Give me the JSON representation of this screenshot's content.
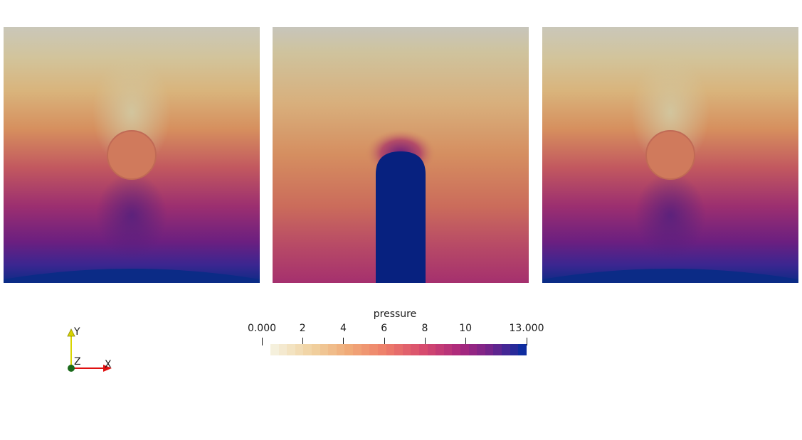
{
  "viewports": [
    {
      "name": "left",
      "feature": "circle"
    },
    {
      "name": "middle",
      "feature": "pillar"
    },
    {
      "name": "right",
      "feature": "circle"
    }
  ],
  "colors": {
    "low": "#f2ecd5",
    "high": "#0b2b86",
    "pillar": "#07217f",
    "top_band": "#c9c9c0",
    "axis_y": "#d8d400",
    "axis_x": "#e01010",
    "axis_z": "#1b6a1b"
  },
  "scalar_bar": {
    "title": "pressure",
    "range": [
      0,
      13
    ],
    "ticks": [
      {
        "value": 0,
        "label": "0.000"
      },
      {
        "value": 2,
        "label": "2"
      },
      {
        "value": 4,
        "label": "4"
      },
      {
        "value": 6,
        "label": "6"
      },
      {
        "value": 8,
        "label": "8"
      },
      {
        "value": 10,
        "label": "10"
      },
      {
        "value": 13,
        "label": "13.000"
      }
    ],
    "segments": 31
  },
  "axes": {
    "x_label": "X",
    "y_label": "Y",
    "z_label": "Z"
  }
}
